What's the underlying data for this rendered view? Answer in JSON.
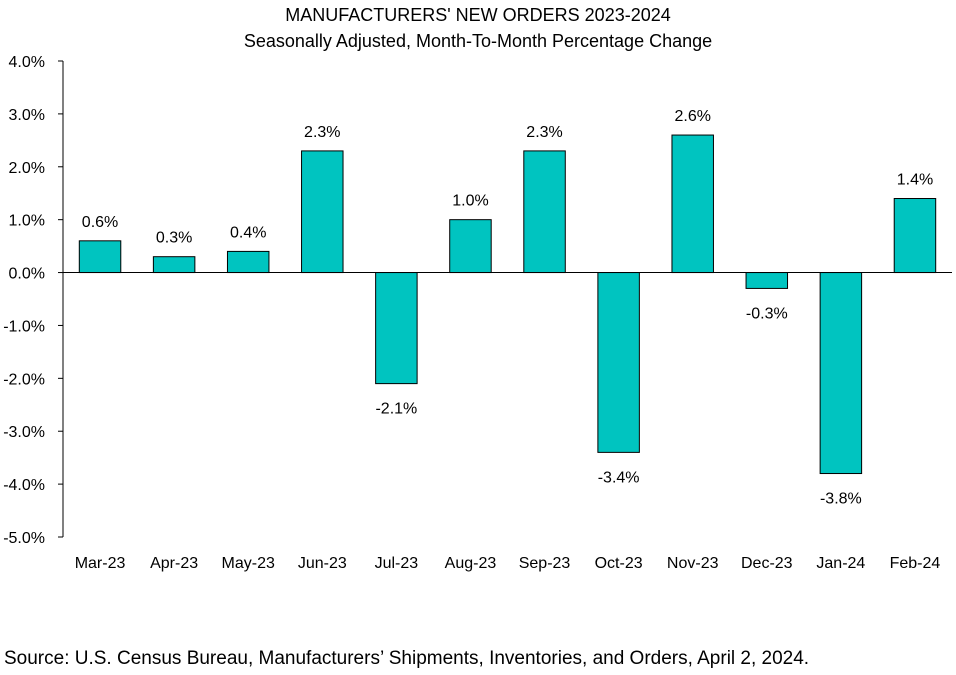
{
  "chart_data": {
    "type": "bar",
    "title": "MANUFACTURERS' NEW ORDERS 2023-2024",
    "subtitle": "Seasonally Adjusted,  Month-To-Month Percentage Change",
    "xlabel": "",
    "ylabel": "",
    "categories": [
      "Mar-23",
      "Apr-23",
      "May-23",
      "Jun-23",
      "Jul-23",
      "Aug-23",
      "Sep-23",
      "Oct-23",
      "Nov-23",
      "Dec-23",
      "Jan-24",
      "Feb-24"
    ],
    "values": [
      0.6,
      0.3,
      0.4,
      2.3,
      -2.1,
      1.0,
      2.3,
      -3.4,
      2.6,
      -0.3,
      -3.8,
      1.4
    ],
    "data_labels": [
      "0.6%",
      "0.3%",
      "0.4%",
      "2.3%",
      "-2.1%",
      "1.0%",
      "2.3%",
      "-3.4%",
      "2.6%",
      "-0.3%",
      "-3.8%",
      "1.4%"
    ],
    "ylim": [
      -5.0,
      4.0
    ],
    "yticks": [
      4.0,
      3.0,
      2.0,
      1.0,
      0.0,
      -1.0,
      -2.0,
      -3.0,
      -4.0,
      -5.0
    ],
    "ytick_labels": [
      "4.0%",
      "3.0%",
      "2.0%",
      "1.0%",
      "0.0%",
      "-1.0%",
      "-2.0%",
      "-3.0%",
      "-4.0%",
      "-5.0%"
    ],
    "grid": false,
    "legend": "none",
    "bar_color": "#00C4C0",
    "bar_edge_color": "#000000",
    "source": "Source: U.S. Census Bureau, Manufacturers’ Shipments, Inventories, and Orders, April 2, 2024."
  }
}
